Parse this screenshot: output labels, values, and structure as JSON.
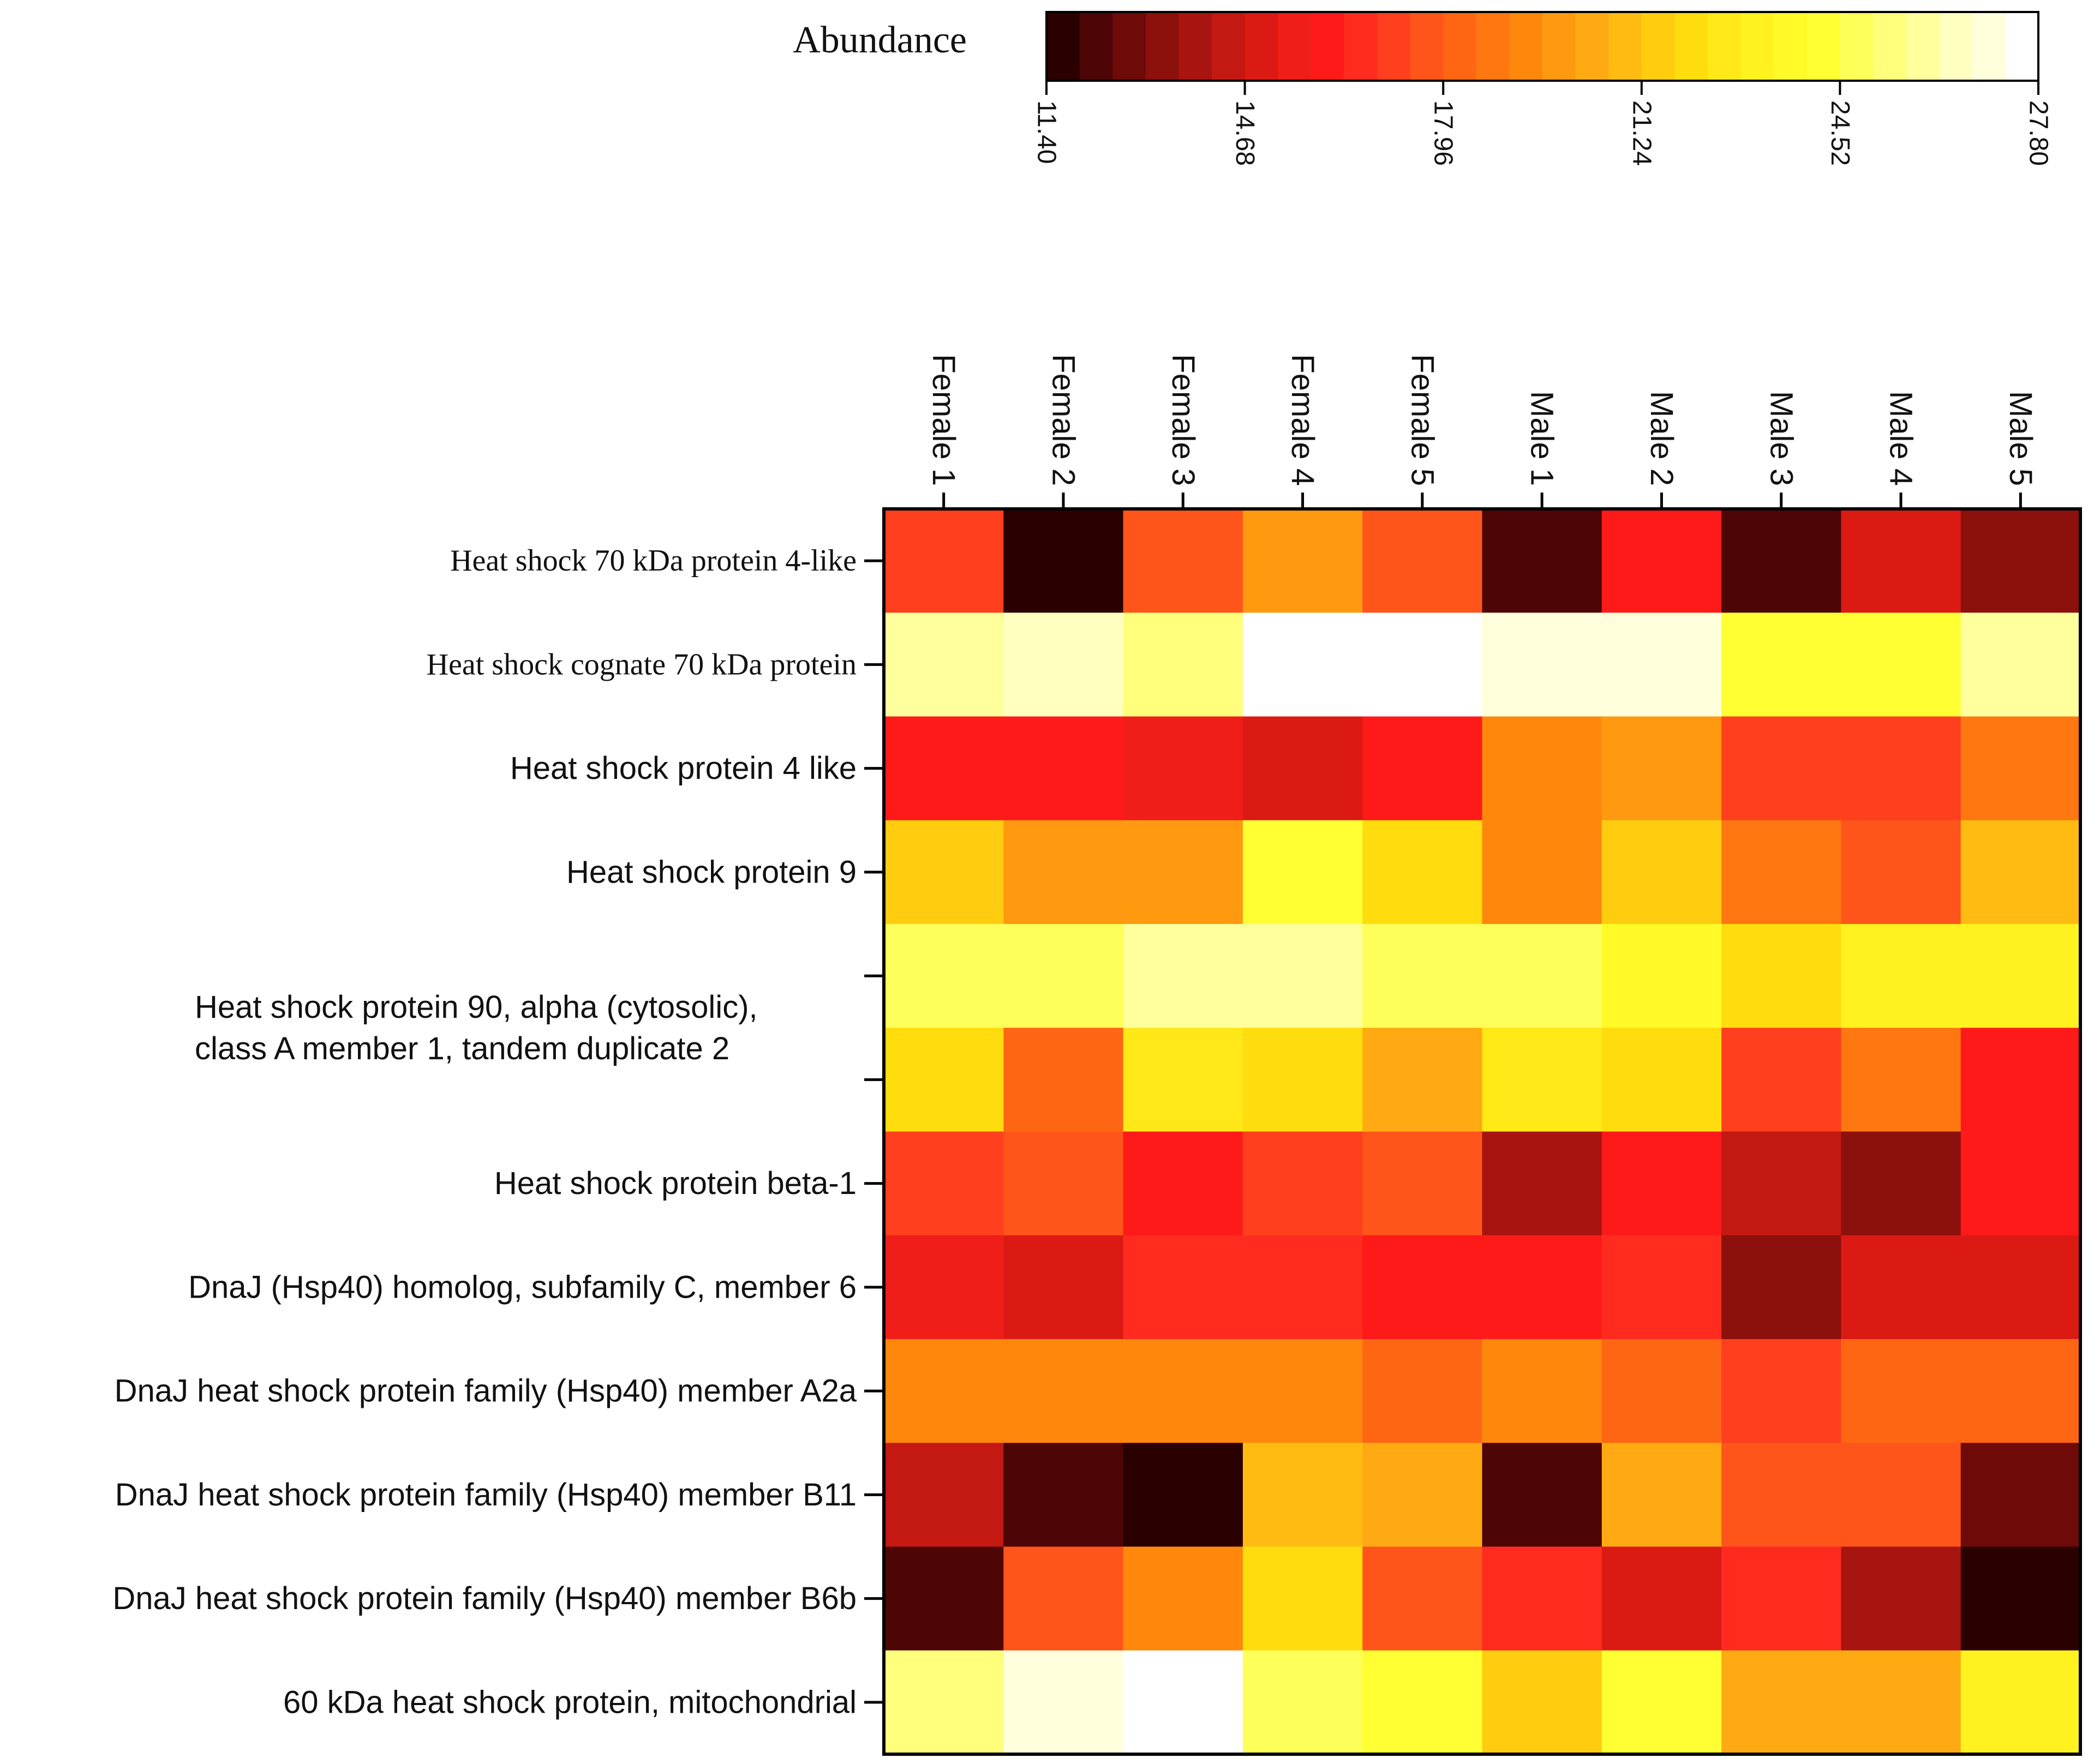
{
  "chart_data": {
    "type": "heatmap",
    "title": "",
    "xlabel": "",
    "ylabel": "",
    "colorbar": {
      "label": "Abundance",
      "min": 11.4,
      "max": 27.8,
      "ticks": [
        "11.40",
        "14.68",
        "17.96",
        "21.24",
        "24.52",
        "27.80"
      ],
      "colors": [
        "#2a0000",
        "#4d0505",
        "#6e0a08",
        "#8c100b",
        "#a8140f",
        "#c41812",
        "#dc1a14",
        "#f01e18",
        "#ff1a1a",
        "#ff2b1f",
        "#ff3f1d",
        "#ff551a",
        "#ff6614",
        "#ff7710",
        "#ff880c",
        "#ff9910",
        "#ffaa12",
        "#ffbb12",
        "#ffcc0f",
        "#ffdc0d",
        "#ffe817",
        "#fff21f",
        "#fffa28",
        "#ffff33",
        "#ffff5a",
        "#ffff7c",
        "#ffff9c",
        "#ffffbf",
        "#ffffdc",
        "#ffffff"
      ]
    },
    "columns": [
      "Female 1",
      "Female 2",
      "Female 3",
      "Female 4",
      "Female 5",
      "Male 1",
      "Male 2",
      "Male 3",
      "Male 4",
      "Male 5"
    ],
    "rows": [
      {
        "label": [
          "Heat shock 70 kDa protein 4-like"
        ],
        "font": "serif",
        "values": [
          17.0,
          11.4,
          17.7,
          19.6,
          17.6,
          12.2,
          15.9,
          12.4,
          14.9,
          13.2
        ]
      },
      {
        "label": [
          "Heat shock cognate 70 kDa protein"
        ],
        "font": "serif",
        "values": [
          25.7,
          26.7,
          25.4,
          27.8,
          27.3,
          26.8,
          26.8,
          24.0,
          24.2,
          25.7
        ]
      },
      {
        "label": [
          "Heat shock protein 4 like"
        ],
        "font": "sans",
        "values": [
          16.3,
          16.3,
          15.6,
          14.8,
          16.3,
          19.2,
          19.7,
          17.0,
          17.3,
          18.8
        ]
      },
      {
        "label": [
          "Heat shock protein 9"
        ],
        "font": "sans",
        "values": [
          21.6,
          20.1,
          19.9,
          24.3,
          21.9,
          19.2,
          21.6,
          18.7,
          17.9,
          21.0
        ]
      },
      {
        "label": [
          "Heat shock protein 90, alpha (cytosolic),",
          "class A member 1, tandem duplicate 2"
        ],
        "font": "sans",
        "values": [
          24.6,
          24.6,
          25.9,
          25.9,
          24.6,
          24.6,
          23.6,
          21.9,
          23.0,
          23.0
        ]
      },
      {
        "label": [],
        "font": "sans",
        "values": [
          21.9,
          18.4,
          22.4,
          21.9,
          20.2,
          22.5,
          21.9,
          17.1,
          18.6,
          15.9
        ]
      },
      {
        "label": [
          "Heat shock protein beta-1"
        ],
        "font": "sans",
        "values": [
          16.9,
          17.7,
          15.8,
          17.1,
          17.7,
          14.1,
          15.9,
          14.2,
          13.4,
          15.9
        ]
      },
      {
        "label": [
          "DnaJ (Hsp40) homolog, subfamily C, member 6"
        ],
        "font": "sans",
        "values": [
          15.6,
          15.0,
          16.5,
          16.7,
          16.3,
          16.3,
          16.7,
          13.4,
          15.1,
          15.1
        ]
      },
      {
        "label": [
          "DnaJ heat shock protein family (Hsp40) member A2a"
        ],
        "font": "sans",
        "values": [
          19.5,
          19.3,
          19.1,
          19.1,
          18.4,
          19.1,
          18.2,
          17.4,
          18.1,
          18.1
        ]
      },
      {
        "label": [
          "DnaJ heat shock protein family (Hsp40) member B11"
        ],
        "font": "sans",
        "values": [
          14.2,
          12.4,
          11.4,
          20.9,
          20.3,
          12.2,
          20.2,
          17.9,
          17.9,
          12.5
        ]
      },
      {
        "label": [
          "DnaJ heat shock protein family (Hsp40) member B6b"
        ],
        "font": "sans",
        "values": [
          12.2,
          17.8,
          19.3,
          22.2,
          17.9,
          16.4,
          15.2,
          16.4,
          14.1,
          11.4
        ]
      },
      {
        "label": [
          "60 kDa heat shock protein, mitochondrial"
        ],
        "font": "sans",
        "values": [
          25.4,
          26.9,
          27.3,
          25.0,
          24.2,
          21.7,
          24.4,
          20.3,
          20.6,
          23.1
        ]
      }
    ]
  }
}
